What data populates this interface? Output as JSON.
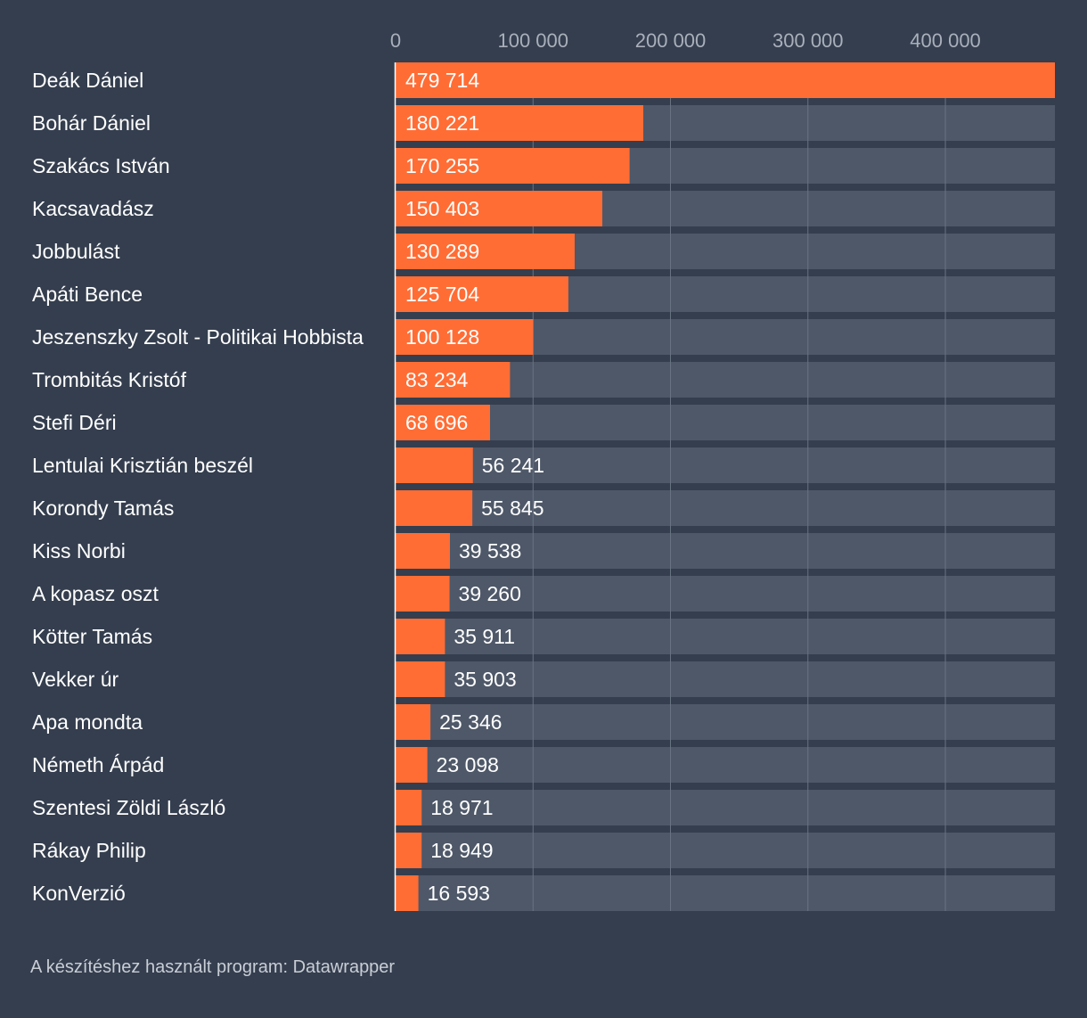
{
  "chart_data": {
    "type": "bar",
    "orientation": "horizontal",
    "title": "",
    "xlabel": "",
    "ylabel": "",
    "xlim": [
      0,
      479714
    ],
    "x_ticks": [
      0,
      100000,
      200000,
      300000,
      400000
    ],
    "x_tick_labels": [
      "0",
      "100 000",
      "200 000",
      "300 000",
      "400 000"
    ],
    "categories": [
      "Deák Dániel",
      "Bohár Dániel",
      "Szakács István",
      "Kacsavadász",
      "Jobbulást",
      "Apáti Bence",
      "Jeszenszky Zsolt - Politikai Hobbista",
      "Trombitás Kristóf",
      "Stefi Déri",
      "Lentulai Krisztián beszél",
      "Korondy Tamás",
      "Kiss Norbi",
      "A kopasz oszt",
      "Kötter Tamás",
      "Vekker úr",
      "Apa mondta",
      "Németh Árpád",
      "Szentesi Zöldi László",
      "Rákay Philip",
      "KonVerzió"
    ],
    "values": [
      479714,
      180221,
      170255,
      150403,
      130289,
      125704,
      100128,
      83234,
      68696,
      56241,
      55845,
      39538,
      39260,
      35911,
      35903,
      25346,
      23098,
      18971,
      18949,
      16593
    ],
    "value_labels": [
      "479 714",
      "180 221",
      "170 255",
      "150 403",
      "130 289",
      "125 704",
      "100 128",
      "83 234",
      "68 696",
      "56 241",
      "55 845",
      "39 538",
      "39 260",
      "35 911",
      "35 903",
      "25 346",
      "23 098",
      "18 971",
      "18 949",
      "16 593"
    ],
    "grid": true,
    "colors": {
      "bar": "#ff6d35",
      "track": "#4e5868",
      "background": "#343e4e",
      "grid": "#6a7384"
    }
  },
  "footer": "A készítéshez használt program: Datawrapper"
}
